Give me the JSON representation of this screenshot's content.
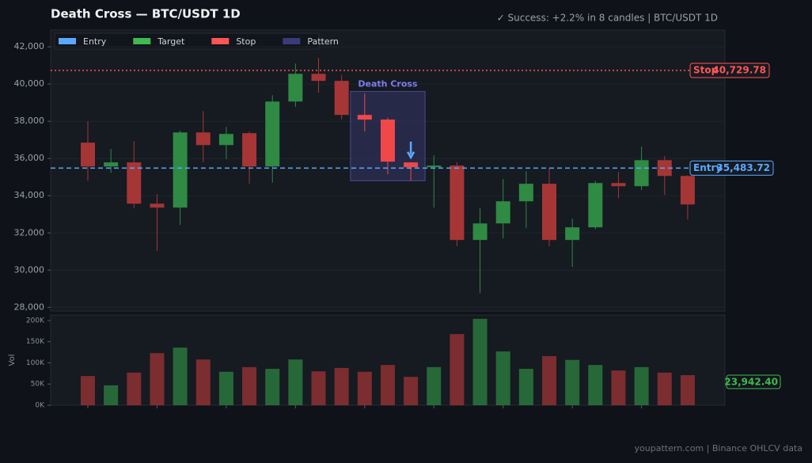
{
  "chart_data": [
    {
      "type": "candlestick",
      "title": "Death Cross  —  BTC/USDT 1D",
      "subtitle": "✓ Success: +2.2% in 8 candles  |  BTC/USDT 1D",
      "open": [
        36850,
        35570,
        35790,
        33570,
        33360,
        37400,
        36720,
        37360,
        35570,
        39060,
        40550,
        40170,
        38340,
        38090,
        35790,
        35530,
        35620,
        31620,
        32510,
        33700,
        34640,
        31620,
        32300,
        34680,
        34510,
        35910,
        35060
      ],
      "high": [
        38000,
        36510,
        36940,
        34090,
        37500,
        38550,
        37700,
        37450,
        39400,
        41100,
        41400,
        40500,
        39490,
        38200,
        35800,
        36170,
        35800,
        33320,
        34890,
        35320,
        35500,
        32770,
        34800,
        35280,
        36640,
        36130,
        35100
      ],
      "low": [
        34800,
        35230,
        33320,
        31020,
        32430,
        35790,
        35960,
        34640,
        34700,
        38770,
        39530,
        38100,
        37450,
        35150,
        34800,
        33360,
        31280,
        28770,
        31700,
        32260,
        31280,
        30170,
        32200,
        33870,
        34300,
        34040,
        32720
      ],
      "close": [
        35570,
        35790,
        33570,
        33360,
        37400,
        36720,
        37320,
        35570,
        39060,
        40550,
        40170,
        38340,
        38090,
        35830,
        35530,
        35620,
        31620,
        32510,
        33700,
        34640,
        31620,
        32300,
        34680,
        34510,
        35910,
        35060,
        33530
      ],
      "up_color": "#2f8a44",
      "down_color": "#a63636",
      "highlight_color": "#f04848",
      "ylim": [
        27800,
        42900
      ],
      "yticks": [
        {
          "value": 28000,
          "label": "28,000"
        },
        {
          "value": 30000,
          "label": "30,000"
        },
        {
          "value": 32000,
          "label": "32,000"
        },
        {
          "value": 34000,
          "label": "34,000"
        },
        {
          "value": 36000,
          "label": "36,000"
        },
        {
          "value": 38000,
          "label": "38,000"
        },
        {
          "value": 40000,
          "label": "40,000"
        },
        {
          "value": 42000,
          "label": "42,000"
        }
      ],
      "grid": true,
      "legend": [
        {
          "name": "Entry",
          "color": "#5aa9ff"
        },
        {
          "name": "Target",
          "color": "#3fb950"
        },
        {
          "name": "Stop",
          "color": "#ff5555"
        },
        {
          "name": "Pattern",
          "color": "#3b3b7a"
        }
      ],
      "levels": [
        {
          "name": "Stop",
          "value": 40729.78,
          "label": "40,729.78",
          "color": "#ff5555"
        },
        {
          "name": "Entry",
          "value": 35483.72,
          "label": "35,483.72",
          "color": "#5aa9ff"
        }
      ],
      "pattern": {
        "label": "Death Cross",
        "from": 12,
        "to": 14,
        "top": 39600,
        "bottom": 34800
      },
      "footer": "youpattern.com  |  Binance OHLCV data"
    },
    {
      "type": "bar",
      "y_label": "Vol",
      "values": [
        69,
        47,
        77,
        123,
        136,
        108,
        79,
        90,
        86,
        108,
        80,
        88,
        79,
        95,
        67,
        90,
        168,
        204,
        127,
        86,
        116,
        107,
        95,
        82,
        90,
        77,
        71
      ],
      "ylim": [
        0,
        213
      ],
      "yticks": [
        {
          "value": 0,
          "label": "0K"
        },
        {
          "value": 50,
          "label": "50K"
        },
        {
          "value": 100,
          "label": "100K"
        },
        {
          "value": 150,
          "label": "150K"
        },
        {
          "value": 200,
          "label": "200K"
        }
      ],
      "tag": "23,942.40"
    }
  ]
}
